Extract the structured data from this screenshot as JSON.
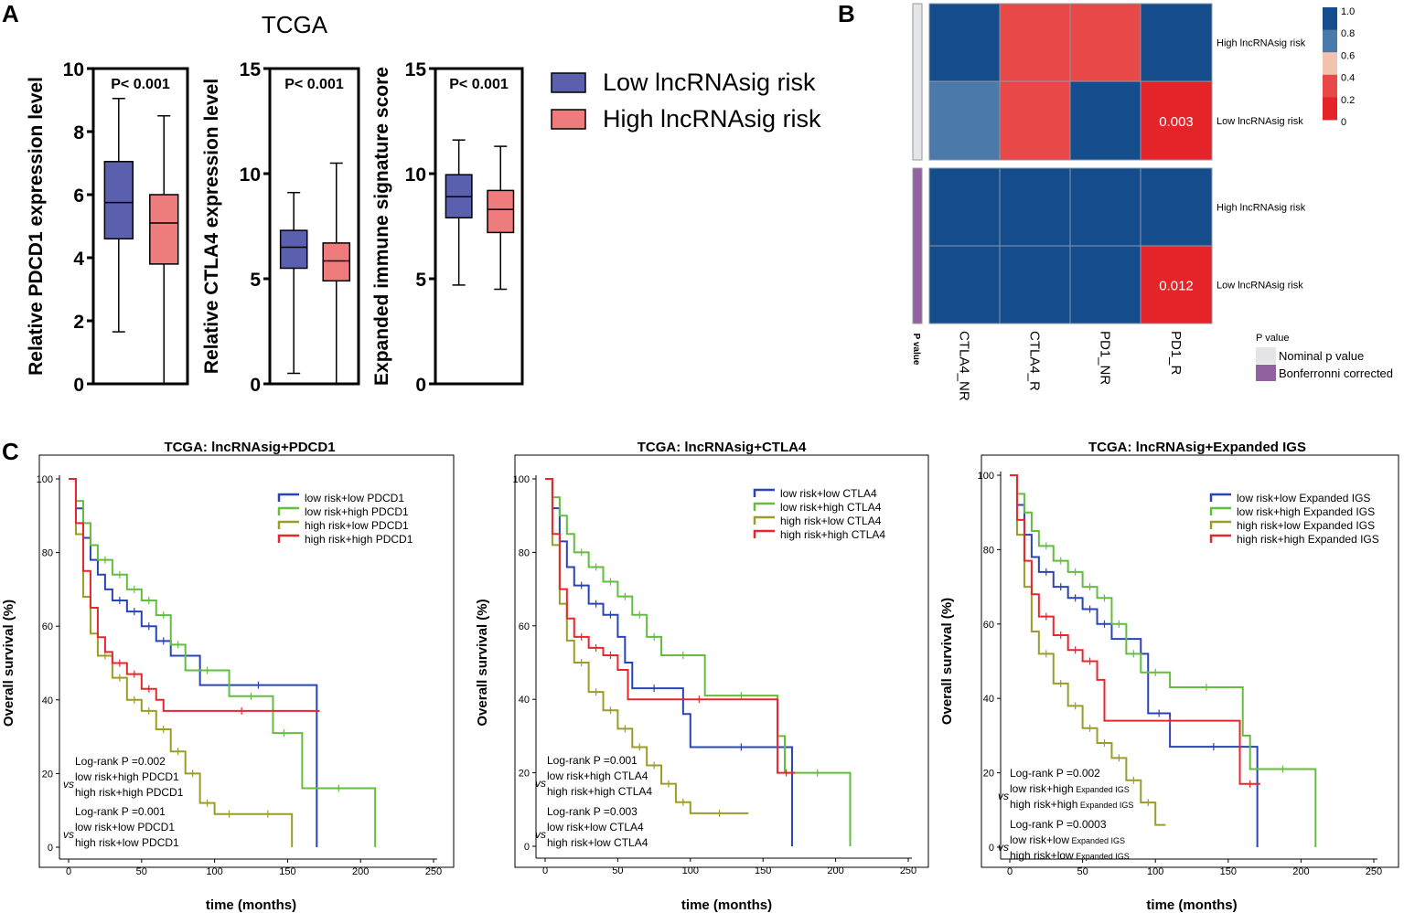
{
  "panel_labels": {
    "a": "A",
    "b": "B",
    "c": "C"
  },
  "colors": {
    "low": "#5a5fae",
    "high": "#ef7c7c",
    "heat_dark": "#144c8c",
    "heat_mid": "#4a79aa",
    "heat_red": "#e84848",
    "heat_bright": "#e5242a",
    "nominal": "#e3e5e6",
    "bonf": "#9161a1",
    "km_blue": "#2a43b5",
    "km_green": "#63bd3f",
    "km_olive": "#9c9c28",
    "km_red": "#e8262d"
  },
  "panel_a": {
    "title": "TCGA",
    "legend": [
      "Low lncRNAsig risk",
      "High lncRNAsig risk"
    ],
    "boxplots": [
      {
        "ylabel": "Relative PDCD1 expression level",
        "pvalue": "P< 0.001",
        "ylim": [
          0,
          10
        ],
        "ticks": [
          "0",
          "2",
          "4",
          "6",
          "8",
          "10"
        ],
        "tick_values": [
          0,
          2,
          4,
          6,
          8,
          10
        ],
        "groups": [
          {
            "name": "low",
            "min": 1.65,
            "q1": 4.6,
            "median": 5.75,
            "q3": 7.05,
            "max": 9.05
          },
          {
            "name": "high",
            "min": 0,
            "q1": 3.8,
            "median": 5.1,
            "q3": 6.0,
            "max": 8.5
          }
        ]
      },
      {
        "ylabel": "Relative CTLA4 expression level",
        "pvalue": "P< 0.001",
        "ylim": [
          0,
          15
        ],
        "ticks": [
          "0",
          "5",
          "10",
          "15"
        ],
        "tick_values": [
          0,
          5,
          10,
          15
        ],
        "groups": [
          {
            "name": "low",
            "min": 0.5,
            "q1": 5.5,
            "median": 6.5,
            "q3": 7.3,
            "max": 9.1
          },
          {
            "name": "high",
            "min": 0,
            "q1": 4.9,
            "median": 5.85,
            "q3": 6.7,
            "max": 10.5
          }
        ]
      },
      {
        "ylabel": "Expanded immune signature score",
        "pvalue": "P< 0.001",
        "ylim": [
          0,
          15
        ],
        "ticks": [
          "0",
          "5",
          "10",
          "15"
        ],
        "tick_values": [
          0,
          5,
          10,
          15
        ],
        "groups": [
          {
            "name": "low",
            "min": 4.7,
            "q1": 7.9,
            "median": 8.9,
            "q3": 9.95,
            "max": 11.6
          },
          {
            "name": "high",
            "min": 4.5,
            "q1": 7.2,
            "median": 8.3,
            "q3": 9.2,
            "max": 11.3
          }
        ]
      }
    ]
  },
  "panel_b": {
    "columns": [
      "CTLA4_NR",
      "CTLA4_R",
      "PD1_NR",
      "PD1_R"
    ],
    "row_labels": [
      "High lncRNAsig risk",
      "Low lncRNAsig risk",
      "High lncRNAsig risk",
      "Low lncRNAsig risk"
    ],
    "values": [
      [
        1.0,
        0.25,
        0.25,
        1.0
      ],
      [
        0.75,
        0.25,
        1.0,
        0.003
      ],
      [
        1.0,
        1.0,
        1.0,
        1.0
      ],
      [
        1.0,
        1.0,
        1.0,
        0.012
      ]
    ],
    "cell_labels": [
      [
        "",
        "",
        "",
        ""
      ],
      [
        "",
        "",
        "",
        "0.003"
      ],
      [
        "",
        "",
        "",
        ""
      ],
      [
        "",
        "",
        "",
        "0.012"
      ]
    ],
    "annotation_title": "P value",
    "scale_ticks": [
      "1.0",
      "0.8",
      "0.6",
      "0.4",
      "0.2",
      "0"
    ],
    "legend_title": "P value",
    "legend_items": [
      "Nominal p value",
      "Bonferronni corrected"
    ]
  },
  "chart_data": [
    {
      "type": "line",
      "title": "TCGA: lncRNAsig+PDCD1",
      "xlabel": "time (months)",
      "ylabel": "Overall survival (%)",
      "xlim": [
        0,
        250
      ],
      "ylim": [
        0,
        100
      ],
      "xticks": [
        "0",
        "50",
        "100",
        "150",
        "200",
        "250"
      ],
      "yticks": [
        "0",
        "20",
        "40",
        "60",
        "80",
        "100"
      ],
      "series": [
        {
          "name": "low risk+low PDCD1",
          "x": [
            0,
            5,
            10,
            15,
            20,
            25,
            30,
            40,
            50,
            60,
            70,
            90,
            170,
            170
          ],
          "y": [
            100,
            92,
            84,
            78,
            74,
            70,
            67,
            64,
            60,
            56,
            52,
            44,
            44,
            0
          ]
        },
        {
          "name": "low risk+high PDCD1",
          "x": [
            0,
            5,
            10,
            15,
            20,
            30,
            40,
            50,
            60,
            70,
            80,
            110,
            140,
            155,
            160,
            210,
            210
          ],
          "y": [
            100,
            94,
            88,
            82,
            78,
            74,
            70,
            67,
            63,
            55,
            48,
            41,
            31,
            31,
            16,
            16,
            0
          ]
        },
        {
          "name": "high risk+low PDCD1",
          "x": [
            0,
            5,
            10,
            15,
            20,
            30,
            40,
            50,
            60,
            70,
            80,
            90,
            100,
            120,
            153,
            153
          ],
          "y": [
            100,
            85,
            68,
            58,
            52,
            46,
            40,
            37,
            32,
            26,
            20,
            12,
            9,
            9,
            9,
            0
          ]
        },
        {
          "name": "high risk+high PDCD1",
          "x": [
            0,
            5,
            10,
            15,
            20,
            25,
            30,
            40,
            50,
            60,
            65,
            172
          ],
          "y": [
            100,
            88,
            75,
            65,
            57,
            53,
            50,
            47,
            43,
            40,
            37,
            37
          ]
        }
      ],
      "annotations": [
        {
          "main": "Log-rank P =0.002",
          "vs": "vs",
          "l1": "low risk+high PDCD1",
          "l2": "high risk+high PDCD1"
        },
        {
          "main": "Log-rank P =0.001",
          "vs": "vs",
          "l1": "low risk+low PDCD1",
          "l2": "high risk+low PDCD1"
        }
      ]
    },
    {
      "type": "line",
      "title": "TCGA: lncRNAsig+CTLA4",
      "xlabel": "time (months)",
      "ylabel": "Overall survival (%)",
      "xlim": [
        0,
        250
      ],
      "ylim": [
        0,
        100
      ],
      "xticks": [
        "0",
        "50",
        "100",
        "150",
        "200",
        "250"
      ],
      "yticks": [
        "0",
        "20",
        "40",
        "60",
        "80",
        "100"
      ],
      "series": [
        {
          "name": "low risk+low CTLA4",
          "x": [
            0,
            5,
            10,
            15,
            20,
            30,
            40,
            50,
            55,
            60,
            90,
            95,
            100,
            170,
            170
          ],
          "y": [
            100,
            92,
            83,
            76,
            71,
            66,
            63,
            57,
            50,
            43,
            43,
            36,
            27,
            27,
            0
          ]
        },
        {
          "name": "low risk+high CTLA4",
          "x": [
            0,
            5,
            10,
            15,
            20,
            30,
            40,
            50,
            60,
            70,
            80,
            110,
            160,
            165,
            210,
            210
          ],
          "y": [
            100,
            95,
            90,
            85,
            80,
            76,
            72,
            68,
            63,
            57,
            52,
            41,
            30,
            20,
            20,
            0
          ]
        },
        {
          "name": "high risk+low CTLA4",
          "x": [
            0,
            5,
            10,
            15,
            20,
            30,
            40,
            50,
            60,
            70,
            80,
            90,
            100,
            140
          ],
          "y": [
            100,
            82,
            66,
            56,
            50,
            42,
            37,
            32,
            27,
            22,
            17,
            12,
            9,
            9
          ]
        },
        {
          "name": "high risk+high CTLA4",
          "x": [
            0,
            5,
            10,
            15,
            20,
            30,
            40,
            50,
            57,
            155,
            160,
            172
          ],
          "y": [
            100,
            85,
            70,
            62,
            57,
            54,
            52,
            48,
            40,
            40,
            20,
            20
          ]
        }
      ],
      "annotations": [
        {
          "main": "Log-rank P =0.001",
          "vs": "vs",
          "l1": "low risk+high CTLA4",
          "l2": "high risk+high CTLA4"
        },
        {
          "main": "Log-rank P =0.003",
          "vs": "vs",
          "l1": "low risk+low CTLA4",
          "l2": "high risk+low CTLA4"
        }
      ]
    },
    {
      "type": "line",
      "title": "TCGA: lncRNAsig+Expanded IGS",
      "xlabel": "time (months)",
      "ylabel": "Overall survival (%)",
      "xlim": [
        0,
        250
      ],
      "ylim": [
        0,
        100
      ],
      "xticks": [
        "0",
        "50",
        "100",
        "150",
        "200",
        "250"
      ],
      "yticks": [
        "0",
        "20",
        "40",
        "60",
        "80",
        "100"
      ],
      "series": [
        {
          "name": "low risk+low Expanded IGS",
          "x": [
            0,
            5,
            10,
            15,
            20,
            30,
            40,
            50,
            60,
            70,
            90,
            95,
            110,
            170,
            170
          ],
          "y": [
            100,
            92,
            84,
            78,
            74,
            70,
            67,
            64,
            60,
            56,
            52,
            36,
            27,
            27,
            0
          ]
        },
        {
          "name": "low risk+high Expanded IGS",
          "x": [
            0,
            5,
            10,
            15,
            20,
            30,
            40,
            50,
            60,
            70,
            80,
            90,
            110,
            160,
            165,
            210,
            210
          ],
          "y": [
            100,
            95,
            90,
            85,
            81,
            77,
            74,
            70,
            67,
            60,
            52,
            47,
            43,
            30,
            21,
            21,
            0
          ]
        },
        {
          "name": "high risk+low Expanded IGS",
          "x": [
            0,
            5,
            10,
            15,
            20,
            30,
            40,
            50,
            60,
            70,
            80,
            90,
            100,
            107
          ],
          "y": [
            100,
            84,
            70,
            58,
            52,
            44,
            38,
            32,
            28,
            24,
            18,
            12,
            6,
            6
          ]
        },
        {
          "name": "high risk+high Expanded IGS",
          "x": [
            0,
            5,
            10,
            15,
            20,
            30,
            40,
            50,
            60,
            65,
            155,
            158,
            172
          ],
          "y": [
            100,
            88,
            77,
            68,
            62,
            57,
            53,
            50,
            45,
            34,
            34,
            17,
            17
          ]
        }
      ],
      "annotations": [
        {
          "main": "Log-rank P =0.002",
          "vs": "vs",
          "l1": "low risk+high",
          "l1s": "Expanded IGS",
          "l2": "high risk+high",
          "l2s": "Expanded IGS"
        },
        {
          "main": "Log-rank P =0.0003",
          "vs": "vs",
          "l1": "low risk+low",
          "l1s": "Expanded IGS",
          "l2": "high risk+low",
          "l2s": "Expanded IGS"
        }
      ]
    }
  ]
}
